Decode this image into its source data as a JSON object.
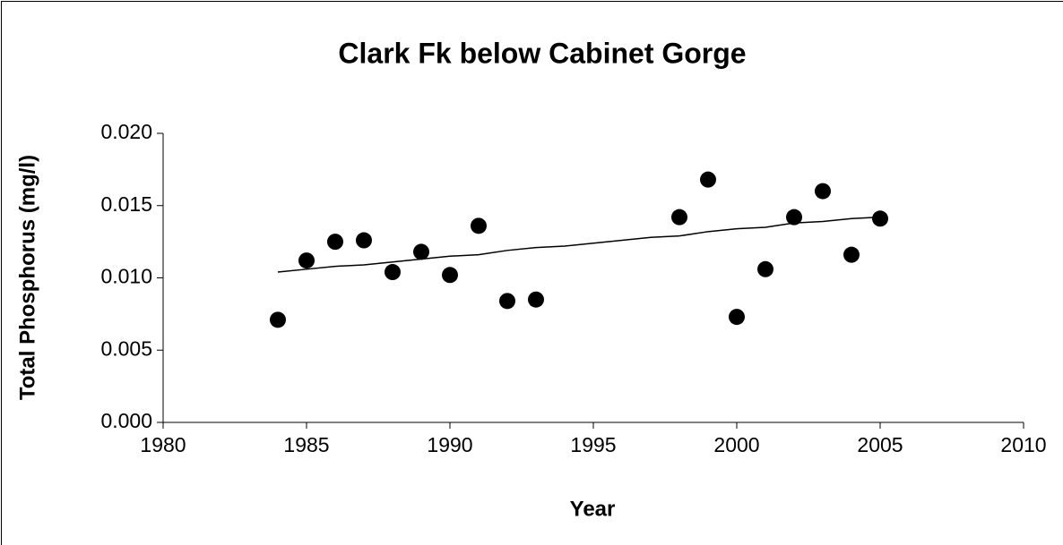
{
  "chart_data": {
    "type": "scatter",
    "title": "Clark Fk below Cabinet Gorge",
    "x_label": "Year",
    "y_label": "Total Phosphorus (mg/l)",
    "xlim": [
      1980,
      2010
    ],
    "xticks": [
      1980,
      1985,
      1990,
      1995,
      2000,
      2005,
      2010
    ],
    "ylim": [
      0,
      0.02
    ],
    "yticks": [
      {
        "value": 0,
        "label": "0.000"
      },
      {
        "value": 0.005,
        "label": "0.005"
      },
      {
        "value": 0.01,
        "label": "0.010"
      },
      {
        "value": 0.015,
        "label": "0.015"
      },
      {
        "value": 0.02,
        "label": "0.020"
      }
    ],
    "series": [
      {
        "type": "scatter",
        "color": "#000000",
        "x": [
          1984,
          1985,
          1986,
          1987,
          1988,
          1989,
          1990,
          1991,
          1992,
          1993,
          1998,
          1999,
          2000,
          2001,
          2002,
          2003,
          2004,
          2005
        ],
        "values": [
          0.0071,
          0.0112,
          0.0125,
          0.0126,
          0.0104,
          0.0118,
          0.0102,
          0.0136,
          0.0084,
          0.0085,
          0.0142,
          0.0168,
          0.0073,
          0.0106,
          0.0142,
          0.016,
          0.0116,
          0.0141
        ]
      },
      {
        "type": "line",
        "color": "#000000",
        "x": [
          1984,
          1985,
          1986,
          1987,
          1988,
          1989,
          1990,
          1991,
          1992,
          1993,
          1994,
          1995,
          1996,
          1997,
          1998,
          1999,
          2000,
          2001,
          2002,
          2003,
          2004,
          2005
        ],
        "values": [
          0.0104,
          0.0106,
          0.0108,
          0.0109,
          0.0111,
          0.0113,
          0.0115,
          0.0116,
          0.0119,
          0.0121,
          0.0122,
          0.0124,
          0.0126,
          0.0128,
          0.0129,
          0.0132,
          0.0134,
          0.0135,
          0.0138,
          0.0139,
          0.0141,
          0.0142
        ]
      }
    ]
  }
}
